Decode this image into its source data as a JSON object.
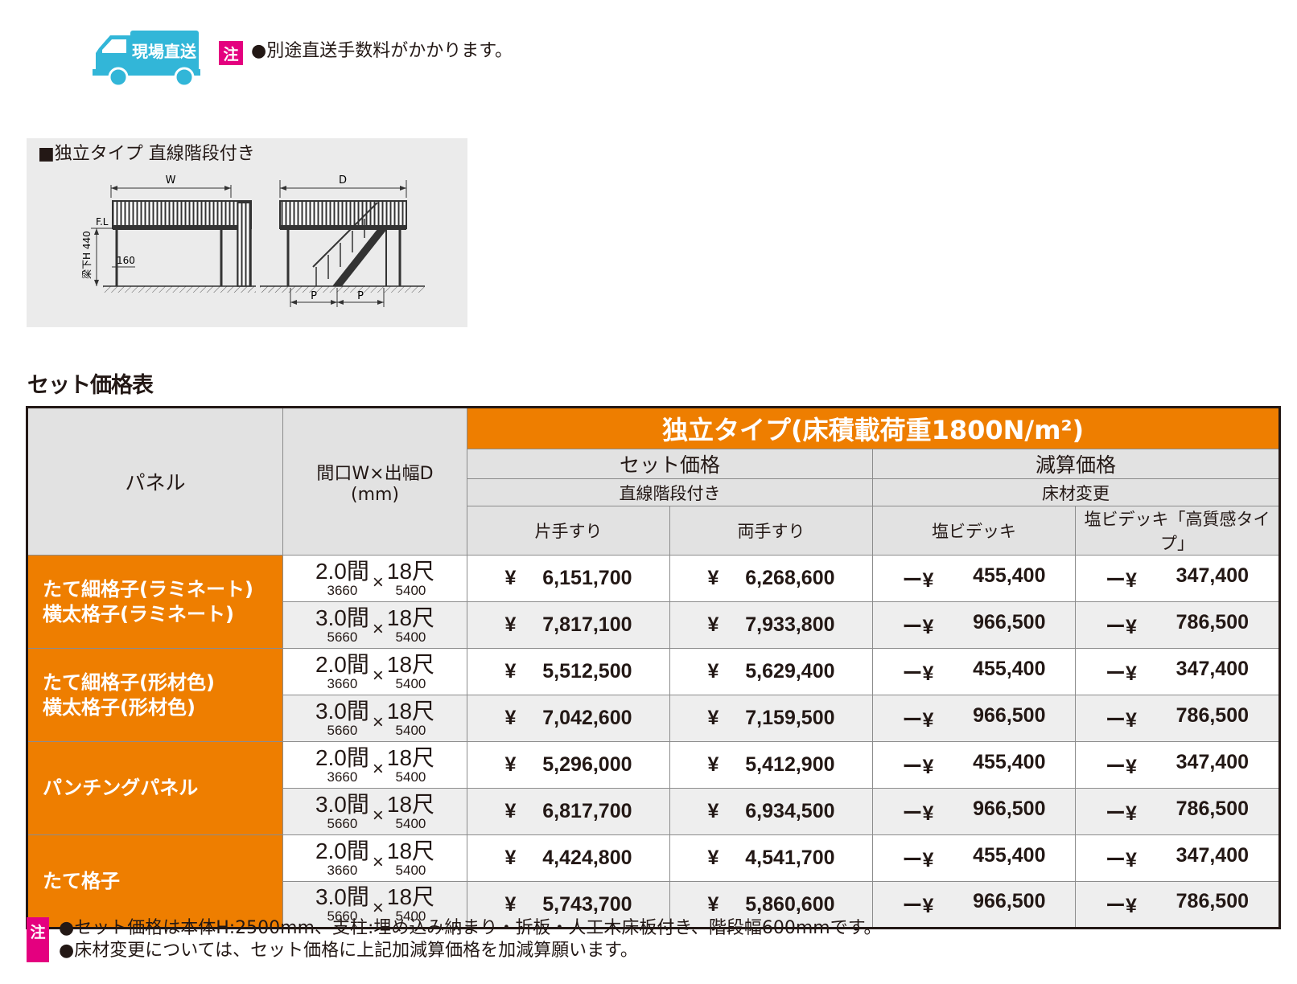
{
  "delivery": {
    "icon": "truck-icon",
    "label": "現場直送",
    "note_badge": "注",
    "note": "●別途直送手数料がかかります。"
  },
  "diagram": {
    "title": "■独立タイプ 直線階段付き",
    "labels": {
      "w": "W",
      "d": "D",
      "fl": "F.L",
      "height": "梁下H 440",
      "beam": "160",
      "p": "P"
    }
  },
  "set_price_title": "セット価格表",
  "table": {
    "header": {
      "panel": "パネル",
      "size_line1": "間口W×出幅D",
      "size_line2": "(mm)",
      "type": "独立タイプ(床積載荷重1800N/m²)",
      "set_price": "セット価格",
      "adjust_price": "減算価格",
      "stairs": "直線階段付き",
      "floor_change": "床材変更",
      "one_rail": "片手すり",
      "both_rail": "両手すり",
      "pvc_deck": "塩ビデッキ",
      "pvc_deck_premium": "塩ビデッキ「高質感タイプ」"
    },
    "groups": [
      {
        "panel_lines": [
          "たて細格子(ラミネート)",
          "横太格子(ラミネート)"
        ],
        "rows": [
          {
            "w": "2.0間",
            "w_mm": "3660",
            "x": "×",
            "d": "18尺",
            "d_mm": "5400",
            "yen": "¥",
            "one": "6,151,700",
            "both": "6,268,600",
            "minus": "ー¥",
            "pvc": "455,400",
            "premium": "347,400"
          },
          {
            "w": "3.0間",
            "w_mm": "5660",
            "x": "×",
            "d": "18尺",
            "d_mm": "5400",
            "yen": "¥",
            "one": "7,817,100",
            "both": "7,933,800",
            "minus": "ー¥",
            "pvc": "966,500",
            "premium": "786,500"
          }
        ]
      },
      {
        "panel_lines": [
          "たて細格子(形材色)",
          "横太格子(形材色)"
        ],
        "rows": [
          {
            "w": "2.0間",
            "w_mm": "3660",
            "x": "×",
            "d": "18尺",
            "d_mm": "5400",
            "yen": "¥",
            "one": "5,512,500",
            "both": "5,629,400",
            "minus": "ー¥",
            "pvc": "455,400",
            "premium": "347,400"
          },
          {
            "w": "3.0間",
            "w_mm": "5660",
            "x": "×",
            "d": "18尺",
            "d_mm": "5400",
            "yen": "¥",
            "one": "7,042,600",
            "both": "7,159,500",
            "minus": "ー¥",
            "pvc": "966,500",
            "premium": "786,500"
          }
        ]
      },
      {
        "panel_lines": [
          "パンチングパネル"
        ],
        "rows": [
          {
            "w": "2.0間",
            "w_mm": "3660",
            "x": "×",
            "d": "18尺",
            "d_mm": "5400",
            "yen": "¥",
            "one": "5,296,000",
            "both": "5,412,900",
            "minus": "ー¥",
            "pvc": "455,400",
            "premium": "347,400"
          },
          {
            "w": "3.0間",
            "w_mm": "5660",
            "x": "×",
            "d": "18尺",
            "d_mm": "5400",
            "yen": "¥",
            "one": "6,817,700",
            "both": "6,934,500",
            "minus": "ー¥",
            "pvc": "966,500",
            "premium": "786,500"
          }
        ]
      },
      {
        "panel_lines": [
          "たて格子"
        ],
        "rows": [
          {
            "w": "2.0間",
            "w_mm": "3660",
            "x": "×",
            "d": "18尺",
            "d_mm": "5400",
            "yen": "¥",
            "one": "4,424,800",
            "both": "4,541,700",
            "minus": "ー¥",
            "pvc": "455,400",
            "premium": "347,400"
          },
          {
            "w": "3.0間",
            "w_mm": "5660",
            "x": "×",
            "d": "18尺",
            "d_mm": "5400",
            "yen": "¥",
            "one": "5,743,700",
            "both": "5,860,600",
            "minus": "ー¥",
            "pvc": "966,500",
            "premium": "786,500"
          }
        ]
      }
    ]
  },
  "footnotes": {
    "badge": "注",
    "lines": [
      "●セット価格は本体H:2500mm、支柱:埋め込み納まり・折板・人工木床板付き、階段幅600mmです。",
      "●床材変更については、セット価格に上記加減算価格を加減算願います。"
    ]
  },
  "colors": {
    "accent_orange": "#ee7e00",
    "note_pink": "#e4007f",
    "truck_blue": "#32b6d8",
    "header_gray": "#e2e2e2",
    "row_gray": "#eeeeee",
    "panel_gray": "#ebebeb"
  }
}
